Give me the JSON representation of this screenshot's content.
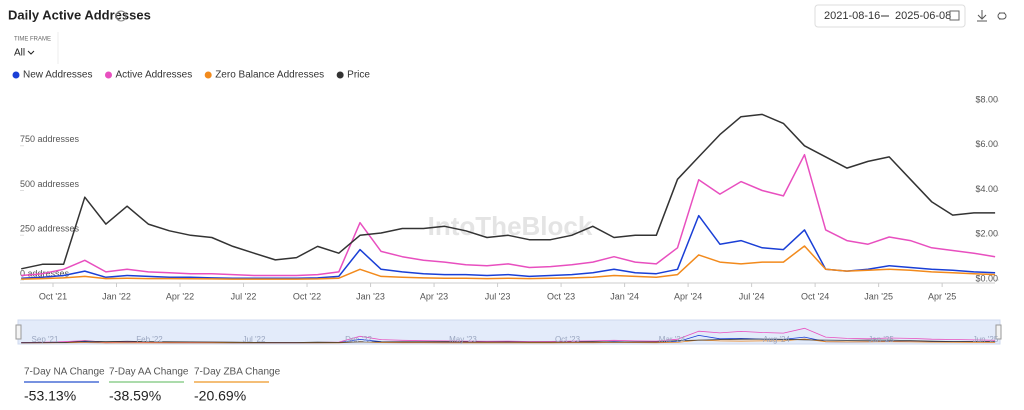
{
  "header": {
    "title": "Daily Active Addresses",
    "date_from": "2021-08-16",
    "date_to": "2025-06-08"
  },
  "timeframe": {
    "label": "TIME FRAME",
    "value": "All"
  },
  "watermark": "IntoTheBlock",
  "chart_data": {
    "type": "line",
    "x": [
      "2021-08",
      "2021-09",
      "2021-10",
      "2021-11",
      "2021-12",
      "2022-01",
      "2022-02",
      "2022-03",
      "2022-04",
      "2022-05",
      "2022-06",
      "2022-07",
      "2022-08",
      "2022-09",
      "2022-10",
      "2022-11",
      "2022-12",
      "2023-01",
      "2023-02",
      "2023-03",
      "2023-04",
      "2023-05",
      "2023-06",
      "2023-07",
      "2023-08",
      "2023-09",
      "2023-10",
      "2023-11",
      "2023-12",
      "2024-01",
      "2024-02",
      "2024-03",
      "2024-04",
      "2024-05",
      "2024-06",
      "2024-07",
      "2024-08",
      "2024-09",
      "2024-10",
      "2024-11",
      "2024-12",
      "2025-01",
      "2025-02",
      "2025-03",
      "2025-04",
      "2025-05",
      "2025-06"
    ],
    "series": [
      {
        "name": "New Addresses",
        "color": "#1a3fd6",
        "values": [
          10,
          15,
          25,
          50,
          15,
          25,
          20,
          15,
          15,
          12,
          10,
          10,
          10,
          10,
          12,
          20,
          170,
          60,
          45,
          35,
          30,
          30,
          25,
          30,
          20,
          25,
          30,
          40,
          60,
          40,
          35,
          60,
          360,
          200,
          220,
          180,
          170,
          280,
          60,
          50,
          60,
          80,
          70,
          60,
          55,
          45,
          40
        ]
      },
      {
        "name": "Active Addresses",
        "color": "#e84fbf",
        "values": [
          25,
          35,
          60,
          110,
          45,
          60,
          45,
          40,
          35,
          35,
          30,
          25,
          25,
          25,
          30,
          45,
          320,
          160,
          130,
          110,
          100,
          85,
          80,
          90,
          70,
          75,
          85,
          100,
          130,
          100,
          90,
          180,
          560,
          480,
          550,
          500,
          470,
          700,
          280,
          220,
          200,
          240,
          220,
          180,
          165,
          150,
          130
        ]
      },
      {
        "name": "Zero Balance Addresses",
        "color": "#f28a1c",
        "values": [
          5,
          8,
          12,
          20,
          8,
          10,
          8,
          8,
          7,
          6,
          5,
          5,
          5,
          5,
          6,
          10,
          60,
          20,
          15,
          12,
          10,
          10,
          8,
          10,
          8,
          10,
          12,
          15,
          25,
          20,
          15,
          30,
          140,
          100,
          90,
          100,
          100,
          190,
          60,
          50,
          55,
          60,
          55,
          45,
          40,
          35,
          30
        ]
      },
      {
        "name": "Price",
        "color": "#333333",
        "axis": "y2",
        "values": [
          0.5,
          0.7,
          0.7,
          3.7,
          2.5,
          3.3,
          2.5,
          2.2,
          2.0,
          1.9,
          1.5,
          1.2,
          0.9,
          1.0,
          1.5,
          1.2,
          2.0,
          2.1,
          2.3,
          2.3,
          2.4,
          2.2,
          1.9,
          2.0,
          1.8,
          1.8,
          2.0,
          2.4,
          1.9,
          2.0,
          2.0,
          4.5,
          5.5,
          6.5,
          7.3,
          7.4,
          7.0,
          6.0,
          5.5,
          5.0,
          5.3,
          5.5,
          4.5,
          3.5,
          2.9,
          3.0,
          3.0
        ]
      }
    ],
    "ylim": [
      0,
      1000
    ],
    "yticks": [
      {
        "value": 0,
        "label": "0 addresses"
      },
      {
        "value": 250,
        "label": "250 addresses"
      },
      {
        "value": 500,
        "label": "500 addresses"
      },
      {
        "value": 750,
        "label": "750 addresses"
      }
    ],
    "y2lim": [
      0,
      8
    ],
    "y2ticks": [
      {
        "value": 0,
        "label": "$0.00"
      },
      {
        "value": 2,
        "label": "$2.00"
      },
      {
        "value": 4,
        "label": "$4.00"
      },
      {
        "value": 6,
        "label": "$6.00"
      },
      {
        "value": 8,
        "label": "$8.00"
      }
    ],
    "xticks": [
      {
        "value": "2021-10",
        "label": "Oct '21"
      },
      {
        "value": "2022-01",
        "label": "Jan '22"
      },
      {
        "value": "2022-04",
        "label": "Apr '22"
      },
      {
        "value": "2022-07",
        "label": "Jul '22"
      },
      {
        "value": "2022-10",
        "label": "Oct '22"
      },
      {
        "value": "2023-01",
        "label": "Jan '23"
      },
      {
        "value": "2023-04",
        "label": "Apr '23"
      },
      {
        "value": "2023-07",
        "label": "Jul '23"
      },
      {
        "value": "2023-10",
        "label": "Oct '23"
      },
      {
        "value": "2024-01",
        "label": "Jan '24"
      },
      {
        "value": "2024-04",
        "label": "Apr '24"
      },
      {
        "value": "2024-07",
        "label": "Jul '24"
      },
      {
        "value": "2024-10",
        "label": "Oct '24"
      },
      {
        "value": "2025-01",
        "label": "Jan '25"
      },
      {
        "value": "2025-04",
        "label": "Apr '25"
      }
    ]
  },
  "navigator": {
    "labels": [
      "Sep '21",
      "Feb '22",
      "Jul '22",
      "Dec '22",
      "May '23",
      "Oct '23",
      "Mar '24",
      "Aug '24",
      "Jan '25",
      "Jun '25"
    ]
  },
  "stats": [
    {
      "label": "7-Day NA Change",
      "value": "-53.13%",
      "color": "#4a6fd6"
    },
    {
      "label": "7-Day AA Change",
      "value": "-38.59%",
      "color": "#8fcf8f"
    },
    {
      "label": "7-Day ZBA Change",
      "value": "-20.69%",
      "color": "#f0a94a"
    }
  ]
}
